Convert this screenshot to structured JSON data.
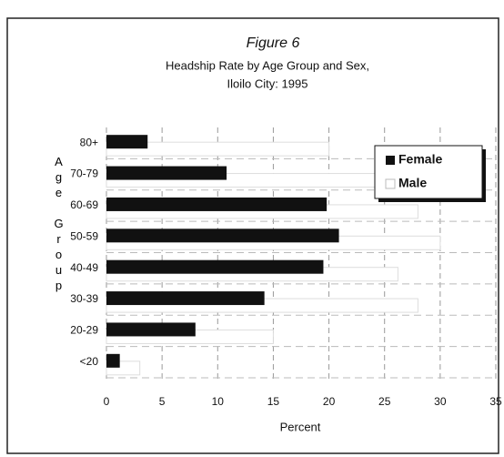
{
  "chart_data": {
    "type": "hbar",
    "title": "Figure 6",
    "subtitle": [
      "Headship Rate by Age Group and Sex,",
      "Iloilo City: 1995"
    ],
    "ylabel": "Age Group",
    "xlabel": "Percent",
    "categories": [
      "<20",
      "20-29",
      "30-39",
      "40-49",
      "50-59",
      "60-69",
      "70-79",
      "80+"
    ],
    "series": [
      {
        "name": "Female",
        "color": "#111111",
        "values": [
          1.2,
          8,
          14.2,
          19.5,
          20.9,
          19.8,
          10.8,
          3.7
        ]
      },
      {
        "name": "Male",
        "color": "#ffffff",
        "values": [
          3,
          15,
          28,
          26.2,
          30,
          28,
          25,
          20
        ]
      }
    ],
    "xlim": [
      0,
      35
    ],
    "xticks": [
      0,
      5,
      10,
      15,
      20,
      25,
      30,
      35
    ],
    "grid": true,
    "legend": "upper right"
  }
}
